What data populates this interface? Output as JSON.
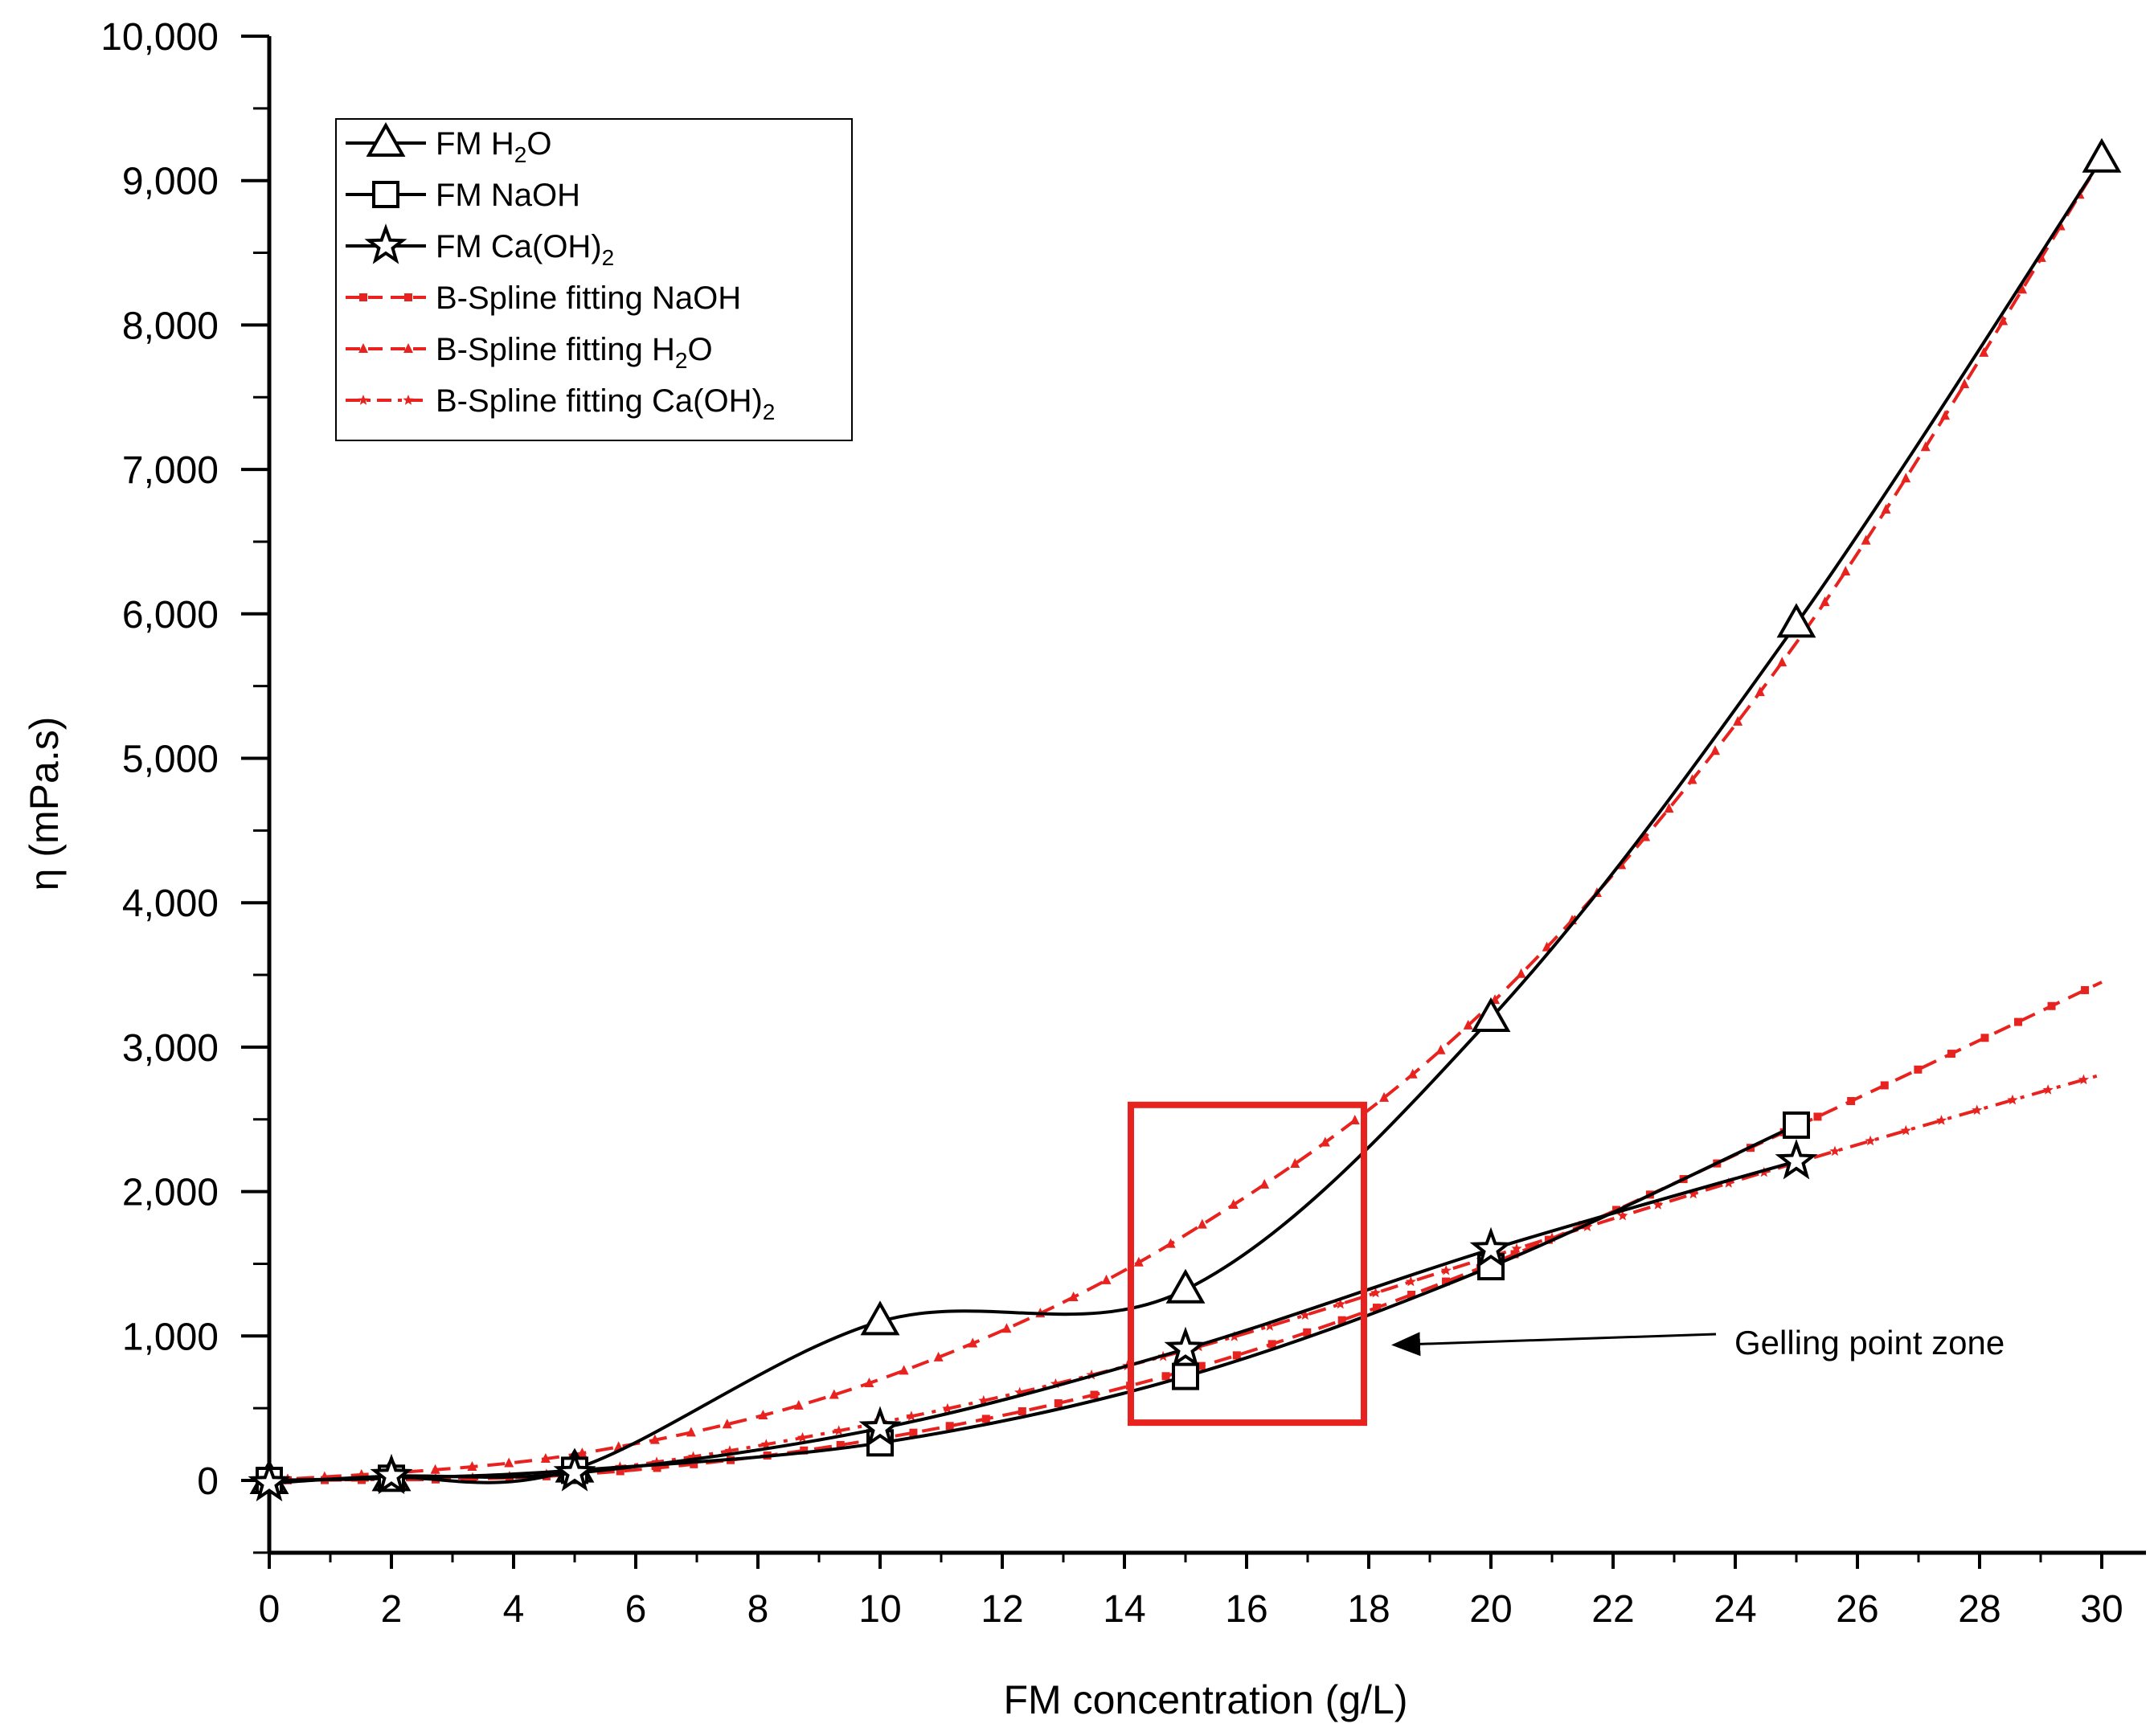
{
  "chart_data": {
    "type": "line",
    "title": "",
    "xlabel": "FM concentration (g/L)",
    "ylabel": "η (mPa.s)",
    "xlim": [
      0,
      30
    ],
    "ylim": [
      -500,
      10000
    ],
    "x_ticks": [
      0,
      2,
      4,
      6,
      8,
      10,
      12,
      14,
      16,
      18,
      20,
      22,
      24,
      26,
      28,
      30
    ],
    "x_tick_labels": [
      "0",
      "2",
      "4",
      "6",
      "8",
      "10",
      "12",
      "14",
      "16",
      "18",
      "20",
      "22",
      "24",
      "26",
      "28",
      "30"
    ],
    "y_ticks": [
      0,
      1000,
      2000,
      3000,
      4000,
      5000,
      6000,
      7000,
      8000,
      9000,
      10000
    ],
    "y_tick_labels": [
      "0",
      "1,000",
      "2,000",
      "3,000",
      "4,000",
      "5,000",
      "6,000",
      "7,000",
      "8,000",
      "9,000",
      "10,000"
    ],
    "grid": false,
    "legend_position": "top-left",
    "series": [
      {
        "name": "FM H2O",
        "label_main": "FM H",
        "label_sub": "2",
        "label_tail": "O",
        "style": "solid-line",
        "marker": "triangle",
        "color": "#000000",
        "x": [
          0,
          2,
          5,
          10,
          15,
          20,
          25,
          30
        ],
        "values": [
          0,
          20,
          80,
          1100,
          1320,
          3200,
          5930,
          9150
        ]
      },
      {
        "name": "FM NaOH",
        "label_main": "FM NaOH",
        "label_sub": "",
        "label_tail": "",
        "style": "solid-line",
        "marker": "square",
        "color": "#000000",
        "x": [
          0,
          2,
          5,
          10,
          15,
          20,
          25
        ],
        "values": [
          0,
          15,
          70,
          260,
          720,
          1480,
          2460
        ]
      },
      {
        "name": "FM Ca(OH)2",
        "label_main": "FM Ca(OH)",
        "label_sub": "2",
        "label_tail": "",
        "style": "solid-line",
        "marker": "star",
        "color": "#000000",
        "x": [
          0,
          2,
          5,
          10,
          15,
          20,
          25
        ],
        "values": [
          -20,
          30,
          50,
          360,
          910,
          1600,
          2210
        ]
      },
      {
        "name": "B-Spline fitting NaOH",
        "label_main": "B-Spline fitting NaOH",
        "label_sub": "",
        "label_tail": "",
        "style": "dashed-line",
        "marker": "small-square",
        "color": "#e8231f",
        "x": [
          0,
          5,
          10,
          15,
          20,
          25,
          30
        ],
        "values": [
          0,
          40,
          290,
          760,
          1500,
          2450,
          3450
        ]
      },
      {
        "name": "B-Spline fitting H2O",
        "label_main": "B-Spline fitting H",
        "label_sub": "2",
        "label_tail": "O",
        "style": "dashed-line",
        "marker": "small-triangle",
        "color": "#e8231f",
        "x": [
          0,
          5,
          10,
          15,
          20,
          25,
          30
        ],
        "values": [
          0,
          180,
          700,
          1700,
          3300,
          5800,
          9150
        ]
      },
      {
        "name": "B-Spline fitting Ca(OH)2",
        "label_main": "B-Spline fitting Ca(OH)",
        "label_sub": "2",
        "label_tail": "",
        "style": "dash-dot-line",
        "marker": "small-star",
        "color": "#e8231f",
        "x": [
          0,
          5,
          10,
          15,
          20,
          25,
          30
        ],
        "values": [
          0,
          60,
          400,
          900,
          1550,
          2200,
          2810
        ]
      }
    ],
    "highlight_box": {
      "x_range": [
        14,
        18
      ],
      "y_range": [
        400,
        2600
      ],
      "color": "#e8231f"
    },
    "annotation": {
      "text": "Gelling point zone",
      "arrow_to": [
        18,
        1050
      ]
    }
  }
}
